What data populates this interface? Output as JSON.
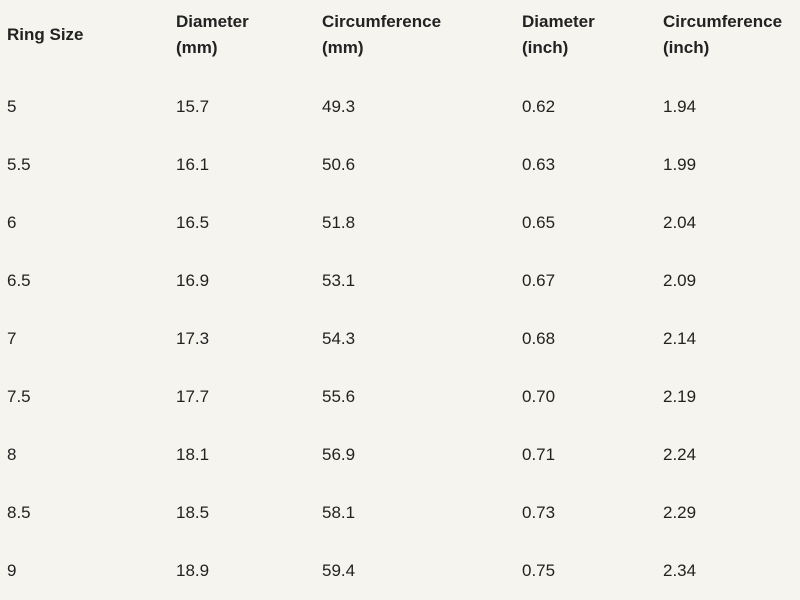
{
  "table": {
    "header": [
      [
        "Ring Size"
      ],
      [
        "Diameter",
        "(mm)"
      ],
      [
        "Circumference",
        "(mm)"
      ],
      [
        "Diameter",
        "(inch)"
      ],
      [
        "Circumference",
        "(inch)"
      ]
    ],
    "rows": [
      [
        "5",
        "15.7",
        "49.3",
        "0.62",
        "1.94"
      ],
      [
        "5.5",
        "16.1",
        "50.6",
        "0.63",
        "1.99"
      ],
      [
        "6",
        "16.5",
        "51.8",
        "0.65",
        "2.04"
      ],
      [
        "6.5",
        "16.9",
        "53.1",
        "0.67",
        "2.09"
      ],
      [
        "7",
        "17.3",
        "54.3",
        "0.68",
        "2.14"
      ],
      [
        "7.5",
        "17.7",
        "55.6",
        "0.70",
        "2.19"
      ],
      [
        "8",
        "18.1",
        "56.9",
        "0.71",
        "2.24"
      ],
      [
        "8.5",
        "18.5",
        "58.1",
        "0.73",
        "2.29"
      ],
      [
        "9",
        "18.9",
        "59.4",
        "0.75",
        "2.34"
      ]
    ]
  }
}
